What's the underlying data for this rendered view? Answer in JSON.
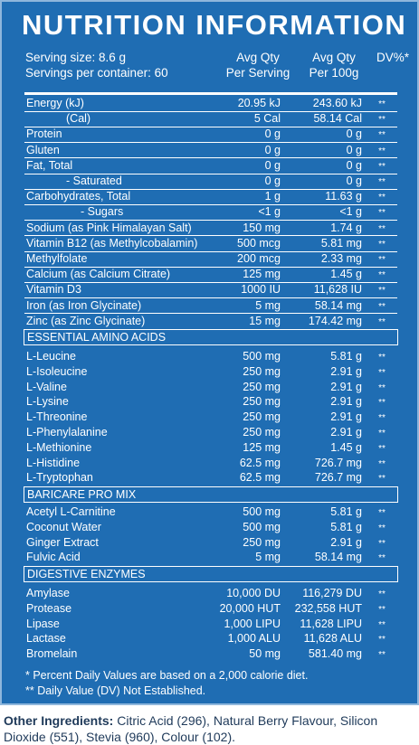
{
  "header": {
    "title": "NUTRITION INFORMATION",
    "serving_size": "Serving size: 8.6 g",
    "servings": "Servings per container: 60",
    "col_serving": [
      "Avg Qty",
      "Per Serving"
    ],
    "col_100g": [
      "Avg Qty",
      "Per 100g"
    ],
    "col_dv": "DV%*"
  },
  "sections": [
    {
      "rows": [
        [
          "Energy (kJ)",
          "20.95 kJ",
          "243.60 kJ",
          "**"
        ],
        [
          "(Cal)",
          "5 Cal",
          "58.14 Cal",
          "**"
        ],
        [
          "Protein",
          "0 g",
          "0 g",
          "**"
        ],
        [
          "Gluten",
          "0 g",
          "0 g",
          "**"
        ],
        [
          "Fat, Total",
          "0 g",
          "0 g",
          "**"
        ],
        [
          "- Saturated",
          "0 g",
          "0 g",
          "**"
        ],
        [
          "Carbohydrates, Total",
          "1 g",
          "11.63 g",
          "**"
        ],
        [
          "- Sugars",
          "<1 g",
          "<1 g",
          "**"
        ],
        [
          "Sodium (as Pink Himalayan Salt)",
          "150 mg",
          "1.74 g",
          "**"
        ],
        [
          "Vitamin B12 (as Methylcobalamin)",
          "500 mcg",
          "5.81 mg",
          "**"
        ],
        [
          "Methylfolate",
          "200 mcg",
          "2.33 mg",
          "**"
        ],
        [
          "Calcium (as Calcium Citrate)",
          "125 mg",
          "1.45 g",
          "**"
        ],
        [
          "Vitamin D3",
          "1000 IU",
          "11,628 IU",
          "**"
        ],
        [
          "Iron (as Iron Glycinate)",
          "5 mg",
          "58.14 mg",
          "**"
        ],
        [
          "Zinc (as Zinc Glycinate)",
          "15 mg",
          "174.42 mg",
          "**"
        ]
      ]
    },
    {
      "title": "ESSENTIAL AMINO ACIDS",
      "rows": [
        [
          "L-Leucine",
          "500 mg",
          "5.81 g",
          "**"
        ],
        [
          "L-Isoleucine",
          "250 mg",
          "2.91 g",
          "**"
        ],
        [
          "L-Valine",
          "250 mg",
          "2.91 g",
          "**"
        ],
        [
          "L-Lysine",
          "250 mg",
          "2.91 g",
          "**"
        ],
        [
          "L-Threonine",
          "250 mg",
          "2.91 g",
          "**"
        ],
        [
          "L-Phenylalanine",
          "250 mg",
          "2.91 g",
          "**"
        ],
        [
          "L-Methionine",
          "125 mg",
          "1.45 g",
          "**"
        ],
        [
          "L-Histidine",
          "62.5 mg",
          "726.7 mg",
          "**"
        ],
        [
          "L-Tryptophan",
          "62.5 mg",
          "726.7 mg",
          "**"
        ]
      ]
    },
    {
      "title": "BARICARE PRO MIX",
      "rows": [
        [
          "Acetyl L-Carnitine",
          "500 mg",
          "5.81 g",
          "**"
        ],
        [
          "Coconut Water",
          "500 mg",
          "5.81 g",
          "**"
        ],
        [
          "Ginger Extract",
          "250 mg",
          "2.91 g",
          "**"
        ],
        [
          "Fulvic Acid",
          "5 mg",
          "58.14 mg",
          "**"
        ]
      ]
    },
    {
      "title": "DIGESTIVE ENZYMES",
      "rows": [
        [
          "Amylase",
          "10,000 DU",
          "116,279 DU",
          "**"
        ],
        [
          "Protease",
          "20,000 HUT",
          "232,558 HUT",
          "**"
        ],
        [
          "Lipase",
          "1,000 LIPU",
          "11,628 LIPU",
          "**"
        ],
        [
          "Lactase",
          "1,000 ALU",
          "11,628 ALU",
          "**"
        ],
        [
          "Bromelain",
          "50 mg",
          "581.40 mg",
          "**"
        ]
      ]
    }
  ],
  "footnotes": [
    "* Percent Daily Values are based on a 2,000 calorie diet.",
    "** Daily Value (DV) Not Established."
  ],
  "other": {
    "label": "Other Ingredients:",
    "text": "Citric Acid (296), Natural Berry Flavour, Silicon Dioxide (551), Stevia (960), Colour (102)."
  }
}
